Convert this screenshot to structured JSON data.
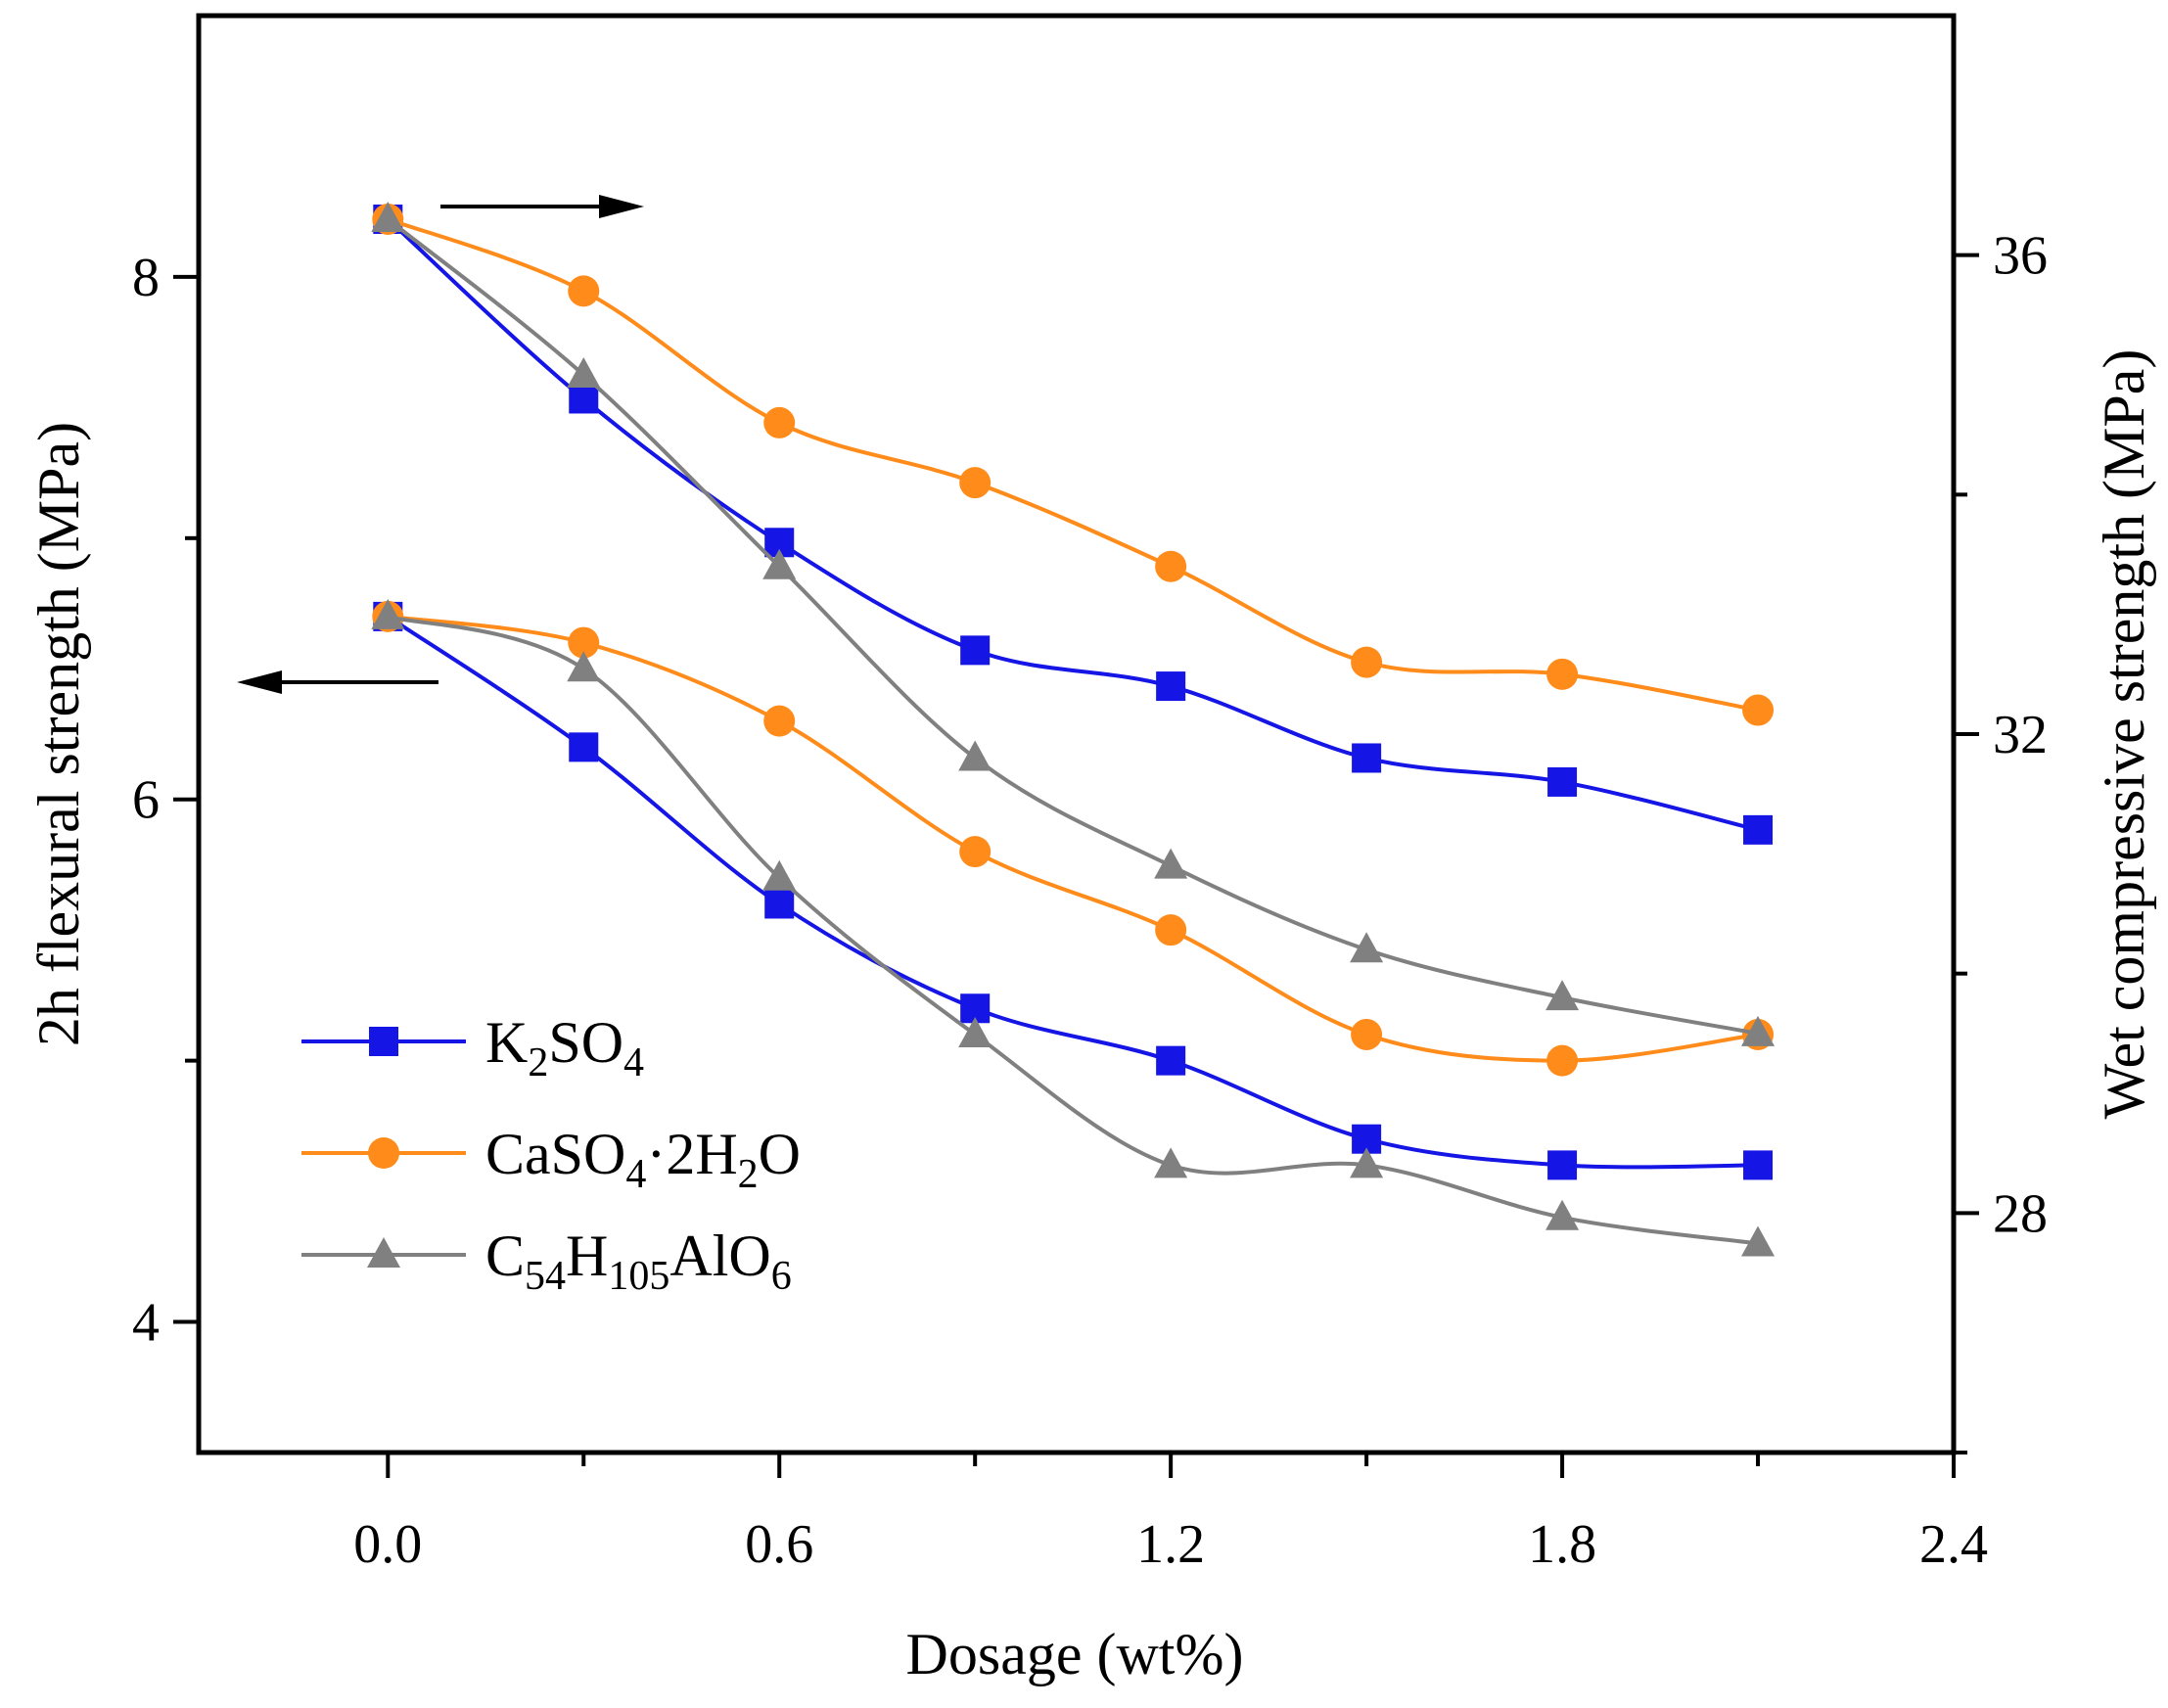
{
  "chart_data": {
    "type": "line",
    "xlabel": "Dosage (wt%)",
    "ylabel_left": "2h flexural strength (MPa)",
    "ylabel_right": "Wet compressive strength (MPa)",
    "xlim": [
      -0.29,
      2.4
    ],
    "ylim_left": [
      3.5,
      9.0
    ],
    "ylim_right": [
      26,
      38
    ],
    "xticks": [
      "0.0",
      "0.6",
      "1.2",
      "1.8",
      "2.4"
    ],
    "yticks_left": [
      "4",
      "6",
      "8"
    ],
    "yticks_right": [
      "28",
      "32",
      "36"
    ],
    "x": [
      0.0,
      0.3,
      0.6,
      0.9,
      1.2,
      1.5,
      1.8,
      2.1
    ],
    "series": [
      {
        "name": "K2SO4",
        "color": "#1515e6",
        "marker": "square",
        "flexural": [
          6.7,
          6.2,
          5.6,
          5.2,
          5.0,
          4.7,
          4.6,
          4.6
        ],
        "compressive": [
          36.3,
          34.8,
          33.6,
          32.7,
          32.4,
          31.8,
          31.6,
          31.2
        ]
      },
      {
        "name": "CaSO4·2H2O",
        "color": "#ff8c1a",
        "marker": "circle",
        "flexural": [
          6.7,
          6.6,
          6.3,
          5.8,
          5.5,
          5.1,
          5.0,
          5.1
        ],
        "compressive": [
          36.3,
          35.7,
          34.6,
          34.1,
          33.4,
          32.6,
          32.5,
          32.2
        ]
      },
      {
        "name": "C54H105AlO6",
        "color": "#808080",
        "marker": "triangle",
        "flexural": [
          6.7,
          6.5,
          5.7,
          5.1,
          4.6,
          4.6,
          4.4,
          4.3
        ],
        "compressive": [
          36.3,
          35.0,
          33.4,
          31.8,
          30.9,
          30.2,
          29.8,
          29.5
        ]
      }
    ],
    "legend": [
      {
        "base": "K",
        "sub1": "2",
        "mid": "SO",
        "sub2": "4",
        "tail": ""
      },
      {
        "base": "CaSO",
        "sub1": "4",
        "mid": "·2H",
        "sub2": "2",
        "tail": "O"
      },
      {
        "base": "C",
        "sub1": "54",
        "mid": "H",
        "sub2": "105",
        "tail": "AlO",
        "sub3": "6"
      }
    ]
  }
}
